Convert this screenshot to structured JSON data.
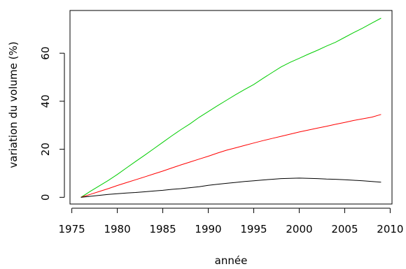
{
  "chart_data": {
    "type": "line",
    "title": "",
    "xlabel": "année",
    "ylabel": "variation du volume (%)",
    "xlim": [
      1974.8,
      2010.2
    ],
    "ylim": [
      -2.8,
      77.8
    ],
    "x_ticks": [
      1975,
      1980,
      1985,
      1990,
      1995,
      2000,
      2005,
      2010
    ],
    "y_ticks": [
      0,
      20,
      40,
      60
    ],
    "grid": false,
    "legend": "none",
    "series": [
      {
        "color": "#00cd00",
        "x": [
          1976,
          1977,
          1978,
          1979,
          1980,
          1981,
          1982,
          1983,
          1984,
          1985,
          1986,
          1987,
          1988,
          1989,
          1990,
          1991,
          1992,
          1993,
          1994,
          1995,
          1996,
          1997,
          1998,
          1999,
          2000,
          2001,
          2002,
          2003,
          2004,
          2005,
          2006,
          2007,
          2008,
          2009
        ],
        "y": [
          0,
          2.4,
          4.7,
          7.0,
          9.5,
          12.2,
          14.9,
          17.5,
          20.2,
          22.9,
          25.6,
          28.2,
          30.6,
          33.3,
          35.7,
          38.1,
          40.4,
          42.7,
          44.9,
          47.0,
          49.5,
          51.9,
          54.3,
          56.2,
          57.9,
          59.6,
          61.2,
          63.0,
          64.6,
          66.6,
          68.6,
          70.5,
          72.6,
          74.6
        ]
      },
      {
        "color": "#ff0000",
        "x": [
          1976,
          1977,
          1978,
          1979,
          1980,
          1981,
          1982,
          1983,
          1984,
          1985,
          1986,
          1987,
          1988,
          1989,
          1990,
          1991,
          1992,
          1993,
          1994,
          1995,
          1996,
          1997,
          1998,
          1999,
          2000,
          2001,
          2002,
          2003,
          2004,
          2005,
          2006,
          2007,
          2008,
          2009
        ],
        "y": [
          0,
          1.2,
          2.4,
          3.6,
          4.9,
          6.1,
          7.3,
          8.5,
          9.7,
          10.9,
          12.2,
          13.5,
          14.7,
          15.9,
          17.1,
          18.4,
          19.6,
          20.6,
          21.6,
          22.6,
          23.6,
          24.5,
          25.4,
          26.3,
          27.2,
          28.0,
          28.8,
          29.6,
          30.4,
          31.2,
          32.0,
          32.7,
          33.4,
          34.5
        ]
      },
      {
        "color": "#000000",
        "x": [
          1976,
          1977,
          1978,
          1979,
          1980,
          1981,
          1982,
          1983,
          1984,
          1985,
          1986,
          1987,
          1988,
          1989,
          1990,
          1991,
          1992,
          1993,
          1994,
          1995,
          1996,
          1997,
          1998,
          1999,
          2000,
          2001,
          2002,
          2003,
          2004,
          2005,
          2006,
          2007,
          2008,
          2009
        ],
        "y": [
          0,
          0.4,
          0.8,
          1.2,
          1.5,
          1.8,
          2.0,
          2.3,
          2.6,
          2.9,
          3.3,
          3.6,
          4.0,
          4.4,
          5.0,
          5.4,
          5.8,
          6.2,
          6.6,
          6.9,
          7.2,
          7.5,
          7.8,
          7.9,
          8.0,
          7.9,
          7.8,
          7.6,
          7.5,
          7.3,
          7.1,
          6.9,
          6.6,
          6.3
        ]
      }
    ]
  }
}
